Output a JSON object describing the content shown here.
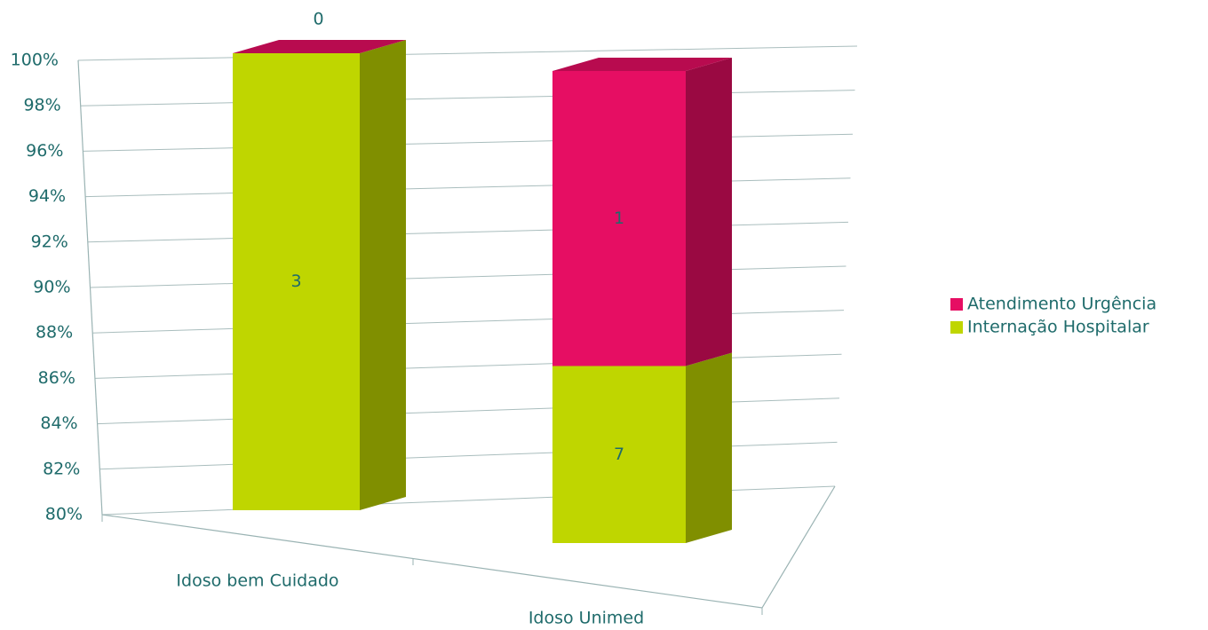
{
  "chart_data": {
    "type": "bar",
    "stack": "percent",
    "categories": [
      "Idoso bem Cuidado",
      "Idoso Unimed"
    ],
    "series": [
      {
        "name": "Internação Hospitalar",
        "color": "#bfd600",
        "values": [
          3,
          7
        ]
      },
      {
        "name": "Atendimento Urgência",
        "color": "#e60e63",
        "values": [
          0,
          1
        ]
      }
    ],
    "ylim": [
      80,
      100
    ],
    "yticks": [
      {
        "value": 80,
        "label": "80%"
      },
      {
        "value": 82,
        "label": "82%"
      },
      {
        "value": 84,
        "label": "84%"
      },
      {
        "value": 86,
        "label": "86%"
      },
      {
        "value": 88,
        "label": "88%"
      },
      {
        "value": 90,
        "label": "90%"
      },
      {
        "value": 92,
        "label": "92%"
      },
      {
        "value": 94,
        "label": "94%"
      },
      {
        "value": 96,
        "label": "96%"
      },
      {
        "value": 98,
        "label": "98%"
      },
      {
        "value": 100,
        "label": "100%"
      }
    ],
    "grid": true,
    "legend": "right"
  }
}
